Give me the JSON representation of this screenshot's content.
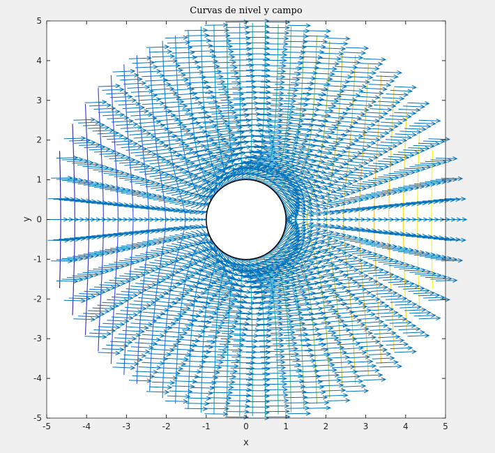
{
  "chart_data": {
    "type": "contour+quiver",
    "title": "Curvas de nivel y campo",
    "xlabel": "x",
    "ylabel": "y",
    "xlim": [
      -5,
      5
    ],
    "ylim": [
      -5,
      5
    ],
    "xticks": [
      "-5",
      "-4",
      "-3",
      "-2",
      "-1",
      "0",
      "1",
      "2",
      "3",
      "4",
      "5"
    ],
    "yticks": [
      "5",
      "4",
      "3",
      "2",
      "1",
      "0",
      "-1",
      "-2",
      "-3",
      "-4",
      "-5"
    ],
    "domain": {
      "r_min": 1,
      "r_max": 5
    },
    "contour": {
      "field": "x*(1+1/(x^2+y^2))",
      "levels": 30,
      "colormap": "parula"
    },
    "quiver": {
      "field": "[1-(x^2-y^2)/r^4, -2xy/r^4]",
      "radii": 30,
      "angles": 60,
      "color": "#0072BD"
    },
    "obstacle": {
      "shape": "circle",
      "radius": 1,
      "fill": "#ffffff",
      "edge": "#000000"
    },
    "grid": false,
    "legend": "none"
  }
}
